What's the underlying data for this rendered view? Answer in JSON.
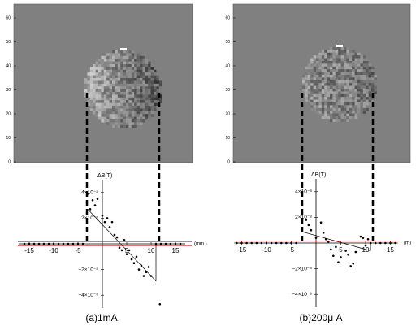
{
  "chart_data": [
    {
      "type": "scatter",
      "caption": "(a)1mA",
      "ylabel": "ΔB(T)",
      "xlabel": "(mm )",
      "image_yticks": [
        0,
        10,
        20,
        30,
        40,
        50,
        60
      ],
      "xlim": [
        -17,
        17
      ],
      "xticks": [
        -15,
        -10,
        -5,
        5,
        10,
        15
      ],
      "ylim": [
        -5e-08,
        5e-08
      ],
      "yticks": [
        {
          "value": 4e-08,
          "label": "4×10⁻⁸"
        },
        {
          "value": 2e-08,
          "label": "2×10⁻⁸"
        },
        {
          "value": -2e-08,
          "label": "−2×10⁻⁸"
        },
        {
          "value": -4e-08,
          "label": "−4×10⁻⁸"
        }
      ],
      "points": {
        "x": [
          -3,
          -2.5,
          -2,
          -1.5,
          -1,
          0,
          0.5,
          1,
          1.5,
          2,
          2.5,
          3,
          3.5,
          4,
          4.5,
          5,
          5.5,
          6,
          6.5,
          7,
          7.5,
          8,
          8.5,
          9,
          9.5,
          10,
          11.8
        ],
        "values": [
          3.9e-08,
          2.7e-08,
          3.4e-08,
          3e-08,
          3.5e-08,
          2.2e-08,
          1.7e-08,
          2e-08,
          1.3e-08,
          1.7e-08,
          7e-09,
          5e-09,
          -3e-09,
          -5e-09,
          3e-09,
          -8e-09,
          -5e-09,
          -1.2e-08,
          -1.5e-08,
          -1e-08,
          -2e-08,
          -1.7e-08,
          -2.5e-08,
          -2.2e-08,
          -1.8e-08,
          -2.5e-08,
          -4.7e-08
        ]
      },
      "baseline": {
        "x": [
          -16,
          -15,
          -14,
          -13,
          -12,
          -11,
          -10,
          -9,
          -8,
          -7,
          -6,
          -5,
          -4,
          11,
          12,
          13,
          14,
          15,
          16
        ],
        "values": [
          0,
          0,
          0,
          0,
          0,
          0,
          0,
          0,
          0,
          0,
          0,
          0,
          0,
          0,
          0,
          0,
          0,
          0,
          0
        ]
      },
      "fit": {
        "x": [
          -3,
          11
        ],
        "values": [
          2.7e-08,
          -2.9e-08
        ]
      }
    },
    {
      "type": "scatter",
      "caption": "(b)200μ A",
      "ylabel": "ΔB(T)",
      "xlabel": "(m)",
      "image_yticks": [
        0,
        10,
        20,
        30,
        40,
        50,
        60
      ],
      "xlim": [
        -16.5,
        16.5
      ],
      "xticks": [
        -15,
        -10,
        -5,
        5,
        10,
        15
      ],
      "ylim": [
        -5e-08,
        5e-08
      ],
      "yticks": [
        {
          "value": 4e-08,
          "label": "4×10⁻⁸"
        },
        {
          "value": 2e-08,
          "label": "2×10⁻⁸"
        },
        {
          "value": -2e-08,
          "label": "−2×10⁻⁸"
        },
        {
          "value": -4e-08,
          "label": "−4×10⁻⁸"
        }
      ],
      "points": {
        "x": [
          -2,
          -1.5,
          -1,
          0,
          1,
          1.5,
          2,
          2.5,
          3,
          3.5,
          4,
          4.5,
          5,
          6,
          6.5,
          7,
          7.5,
          8,
          9,
          9.5,
          10,
          10.5
        ],
        "values": [
          1.8e-08,
          1.4e-08,
          1e-08,
          4e-09,
          1.6e-08,
          8e-09,
          3e-09,
          1e-09,
          -5e-09,
          -1e-08,
          -3e-09,
          -1.5e-08,
          -1.1e-08,
          -6e-09,
          -9e-09,
          -1.8e-08,
          -1.6e-08,
          -7e-09,
          5e-09,
          4e-09,
          -2e-09,
          3e-09
        ]
      },
      "baseline": {
        "x": [
          -16,
          -15,
          -14,
          -13,
          -12,
          -11,
          -10,
          -9,
          -8,
          -7,
          -6,
          -5,
          -4,
          11,
          12,
          13,
          14,
          15,
          16
        ],
        "values": [
          0,
          0,
          0,
          0,
          0,
          0,
          0,
          0,
          0,
          0,
          0,
          0,
          0,
          0,
          0,
          0,
          0,
          0,
          0
        ]
      },
      "fit": {
        "x": [
          -3,
          11
        ],
        "values": [
          9e-09,
          -6e-09
        ]
      }
    }
  ]
}
